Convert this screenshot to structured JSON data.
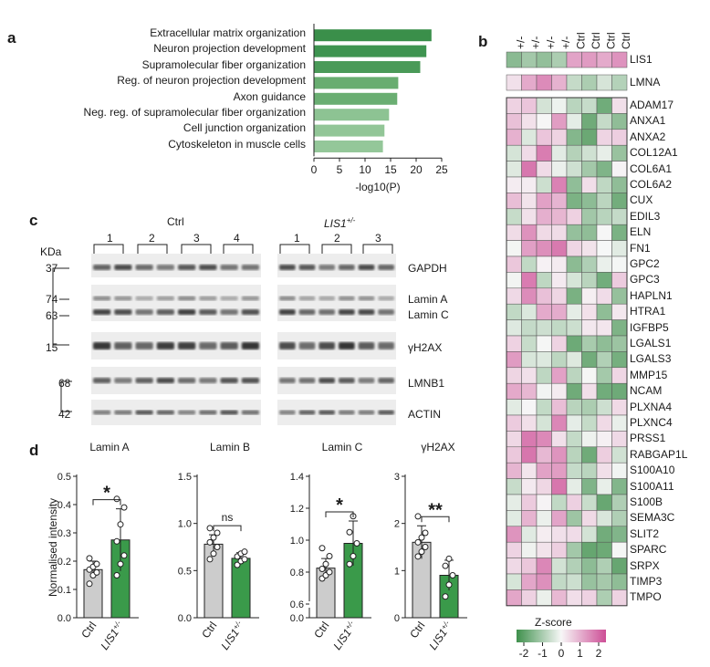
{
  "panel_labels": {
    "a": "a",
    "b": "b",
    "c": "c",
    "d": "d"
  },
  "panel_a": {
    "chart_data": {
      "type": "bar",
      "orientation": "horizontal",
      "categories": [
        "Extracellular matrix organization",
        "Neuron projection development",
        "Supramolecular fiber organization",
        "Reg. of neuron projection development",
        "Axon guidance",
        "Neg. reg. of supramolecular fiber organization",
        "Cell junction organization",
        "Cytoskeleton in muscle cells"
      ],
      "values": [
        23,
        22,
        20.8,
        16.5,
        16.3,
        14.7,
        13.8,
        13.5
      ],
      "colors": [
        "#3a8f4a",
        "#3e9450",
        "#4a9a58",
        "#68ad70",
        "#6aae72",
        "#8dc393",
        "#92c697",
        "#94c799"
      ],
      "xlabel": "-log10(P)",
      "xticks": [
        "0",
        "5",
        "10",
        "15",
        "20",
        "25"
      ],
      "xlim": [
        0,
        25
      ]
    }
  },
  "panel_b": {
    "column_labels": [
      "+/-",
      "+/-",
      "+/-",
      "+/-",
      "Ctrl",
      "Ctrl",
      "Ctrl",
      "Ctrl"
    ],
    "top_genes": [
      {
        "name": "LIS1",
        "z": [
          -1.3,
          -1.0,
          -1.2,
          -0.9,
          1.1,
          1.2,
          1.0,
          1.3
        ]
      },
      {
        "name": "LMNA",
        "z": [
          0.3,
          1.0,
          1.4,
          0.9,
          -0.6,
          -0.9,
          -0.4,
          -0.8
        ]
      }
    ],
    "genes": [
      "ADAM17",
      "ANXA1",
      "ANXA2",
      "COL12A1",
      "COL6A1",
      "COL6A2",
      "CUX",
      "EDIL3",
      "ELN",
      "FN1",
      "GPC2",
      "GPC3",
      "HAPLN1",
      "HTRA1",
      "IGFBP5",
      "LGALS1",
      "LGALS3",
      "MMP15",
      "NCAM",
      "PLXNA4",
      "PLXNC4",
      "PRSS1",
      "RABGAP1L",
      "S100A10",
      "S100A11",
      "S100B",
      "SEMA3C",
      "SLIT2",
      "SPARC",
      "SRPX",
      "TIMP3",
      "TMPO"
    ],
    "colorbar_title": "Z-score",
    "colorbar_ticks": [
      "-2",
      "-1",
      "0",
      "1",
      "2"
    ]
  },
  "panel_c": {
    "ctrl_title": "Ctrl",
    "lis1_title_main": "LIS1",
    "lis1_title_sup": "+/-",
    "ctrl_lane_groups": [
      "1",
      "2",
      "3",
      "4"
    ],
    "lis1_lane_groups": [
      "1",
      "2",
      "3"
    ],
    "kda_label": "KDa",
    "markers": [
      "37",
      "74",
      "63",
      "15",
      "68",
      "42"
    ],
    "band_labels": [
      "GAPDH",
      "Lamin A",
      "Lamin C",
      "γH2AX",
      "LMNB1",
      "ACTIN"
    ]
  },
  "panel_d": {
    "ylabel": "Normalised intensity",
    "x_ctrl": "Ctrl",
    "x_lis1": "LIS1",
    "x_lis1_sup": "+/-",
    "subplots": [
      {
        "title": "Lamin A",
        "ctrl": 0.17,
        "lis1": 0.275,
        "ctrl_err": 0.03,
        "lis1_err": 0.11,
        "ymax": 0.5,
        "yticks": [
          "0.0",
          "0.1",
          "0.2",
          "0.3",
          "0.4",
          "0.5"
        ],
        "sig": "*",
        "ctrl_points": [
          0.12,
          0.15,
          0.16,
          0.17,
          0.18,
          0.19,
          0.21
        ],
        "lis1_points": [
          0.15,
          0.19,
          0.22,
          0.27,
          0.33,
          0.39,
          0.42
        ]
      },
      {
        "title": "Lamin B",
        "ctrl": 0.78,
        "lis1": 0.63,
        "ctrl_err": 0.1,
        "lis1_err": 0.06,
        "ymax": 1.5,
        "yticks": [
          "0.0",
          "0.5",
          "1.0",
          "1.5"
        ],
        "sig": "ns",
        "ctrl_points": [
          0.62,
          0.68,
          0.75,
          0.8,
          0.85,
          0.9,
          0.95
        ],
        "lis1_points": [
          0.56,
          0.6,
          0.62,
          0.65,
          0.68,
          0.7
        ]
      },
      {
        "title": "Lamin C",
        "ctrl": 0.825,
        "lis1": 0.98,
        "ctrl_err": 0.06,
        "lis1_err": 0.14,
        "ymax": 1.4,
        "yticks": [
          "0.0",
          "0.6",
          "0.8",
          "1.0",
          "1.2",
          "1.4"
        ],
        "sig": "*",
        "broken": true,
        "ctrl_points": [
          0.76,
          0.78,
          0.8,
          0.82,
          0.85,
          0.9,
          0.95
        ],
        "lis1_points": [
          0.85,
          0.9,
          0.98,
          1.05,
          1.15
        ]
      },
      {
        "title": "γH2AX",
        "ctrl": 1.6,
        "lis1": 0.9,
        "ctrl_err": 0.35,
        "lis1_err": 0.32,
        "ymax": 3,
        "yticks": [
          "0",
          "1",
          "2",
          "3"
        ],
        "sig": "**",
        "ctrl_points": [
          1.3,
          1.4,
          1.5,
          1.6,
          1.7,
          1.8,
          2.15
        ],
        "lis1_points": [
          0.45,
          0.7,
          0.9,
          1.1,
          1.25
        ]
      }
    ]
  }
}
